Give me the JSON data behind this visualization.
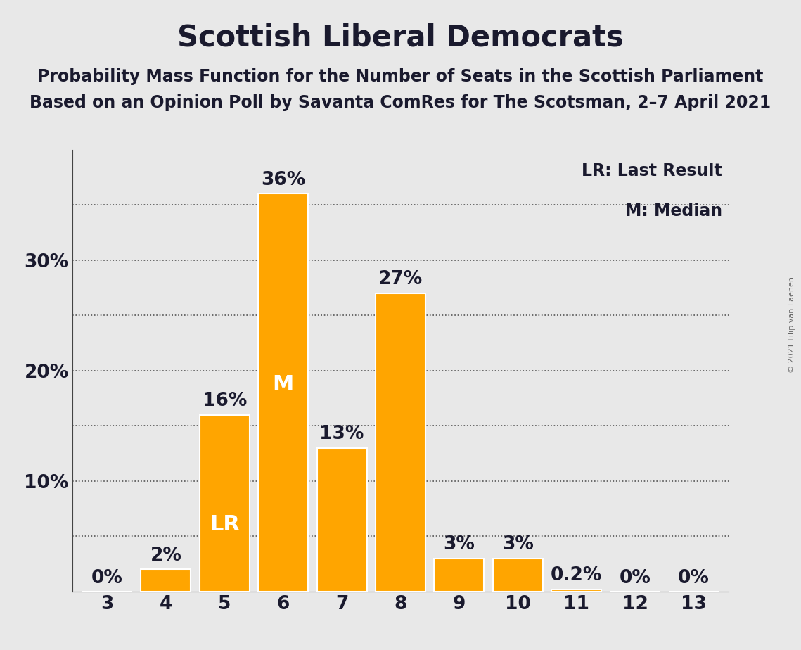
{
  "title": "Scottish Liberal Democrats",
  "subtitle1": "Probability Mass Function for the Number of Seats in the Scottish Parliament",
  "subtitle2": "Based on an Opinion Poll by Savanta ComRes for The Scotsman, 2–7 April 2021",
  "copyright": "© 2021 Filip van Laenen",
  "categories": [
    3,
    4,
    5,
    6,
    7,
    8,
    9,
    10,
    11,
    12,
    13
  ],
  "values": [
    0.0,
    2.0,
    16.0,
    36.0,
    13.0,
    27.0,
    3.0,
    3.0,
    0.2,
    0.0,
    0.0
  ],
  "labels": [
    "0%",
    "2%",
    "16%",
    "36%",
    "13%",
    "27%",
    "3%",
    "3%",
    "0.2%",
    "0%",
    "0%"
  ],
  "bar_color": "#FFA500",
  "background_color": "#E8E8E8",
  "text_color": "#1a1a2e",
  "bar_label_color_inside": "#FFFFFF",
  "bar_label_color_outside": "#1a1a2e",
  "ylim": [
    0,
    40
  ],
  "grid_y": [
    5,
    10,
    15,
    20,
    25,
    30,
    35
  ],
  "legend_text1": "LR: Last Result",
  "legend_text2": "M: Median",
  "last_result_bar": 5,
  "median_bar": 6,
  "title_fontsize": 30,
  "subtitle_fontsize": 17,
  "label_fontsize": 19,
  "tick_fontsize": 19,
  "legend_fontsize": 17,
  "inside_label_threshold": 10
}
